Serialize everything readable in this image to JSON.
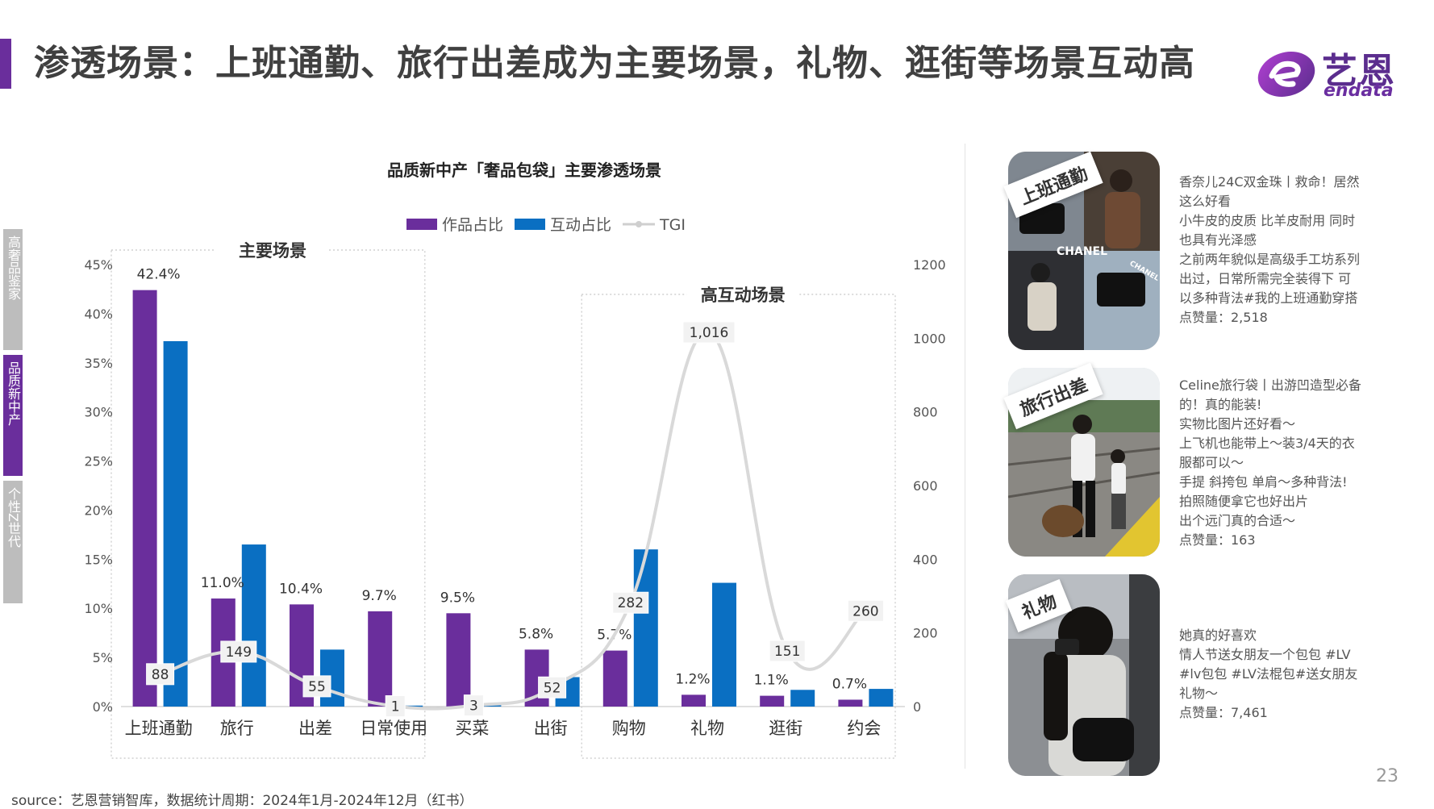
{
  "page": {
    "title": "渗透场景：上班通勤、旅行出差成为主要场景，礼物、逛街等场景互动高",
    "logo_zh": "艺恩",
    "logo_en": "endata",
    "source": "source：艺恩营销智库，数据统计周期：2024年1月-2024年12月（红书）",
    "page_number": "23"
  },
  "side_tabs": [
    {
      "label": "高奢品鉴家",
      "active": false
    },
    {
      "label": "品质新中产",
      "active": true
    },
    {
      "label": "个性Z世代",
      "active": false
    }
  ],
  "colors": {
    "purple": "#6a2e9c",
    "blue": "#0a6fc2",
    "tgi": "#d9d9d9",
    "tab_gray": "#bdbdbd"
  },
  "chart_data": {
    "type": "bar",
    "title": "品质新中产「奢品包袋」主要渗透场景",
    "categories": [
      "上班通勤",
      "旅行",
      "出差",
      "日常使用",
      "买菜",
      "出街",
      "购物",
      "礼物",
      "逛街",
      "约会"
    ],
    "series": [
      {
        "name": "作品占比",
        "color": "#6a2e9c",
        "axis": "left",
        "values": [
          42.4,
          11.0,
          10.4,
          9.7,
          9.5,
          5.8,
          5.7,
          1.2,
          1.1,
          0.7
        ],
        "labels": [
          "42.4%",
          "11.0%",
          "10.4%",
          "9.7%",
          "9.5%",
          "5.8%",
          "5.7%",
          "1.2%",
          "1.1%",
          "0.7%"
        ]
      },
      {
        "name": "互动占比",
        "color": "#0a6fc2",
        "axis": "left",
        "values": [
          37.2,
          16.5,
          5.8,
          0.1,
          0.2,
          3.0,
          16.0,
          12.6,
          1.7,
          1.8
        ]
      },
      {
        "name": "TGI",
        "type": "line",
        "color": "#d9d9d9",
        "axis": "right",
        "values": [
          88,
          149,
          55,
          1,
          3,
          52,
          282,
          1016,
          151,
          260
        ],
        "labels": [
          "88",
          "149",
          "55",
          "1",
          "3",
          "52",
          "282",
          "1,016",
          "151",
          "260"
        ]
      }
    ],
    "y_left": {
      "min": 0,
      "max": 45,
      "ticks": [
        "0%",
        "5%",
        "10%",
        "15%",
        "20%",
        "25%",
        "30%",
        "35%",
        "40%",
        "45%"
      ]
    },
    "y_right": {
      "min": 0,
      "max": 1200,
      "ticks": [
        "0",
        "200",
        "400",
        "600",
        "800",
        "1000",
        "1200"
      ]
    },
    "groups": [
      {
        "label": "主要场景",
        "from": 0,
        "to": 3
      },
      {
        "label": "高互动场景",
        "from": 6,
        "to": 9
      }
    ],
    "legend_position": "top"
  },
  "posts": [
    {
      "tag": "上班通勤",
      "lines": [
        "香奈儿24C双金珠丨救命！居然",
        "这么好看",
        "小牛皮的皮质 比羊皮耐用 同时",
        "也具有光泽感",
        "之前两年貌似是高级手工坊系列",
        "出过，日常所需完全装得下 可",
        "以多种背法#我的上班通勤穿搭",
        "点赞量：2,518"
      ],
      "photo_text": [
        "CHANEL",
        "CHANEL"
      ]
    },
    {
      "tag": "旅行出差",
      "lines": [
        "Celine旅行袋丨出游凹造型必备",
        "的！真的能装!",
        "实物比图片还好看～",
        "上飞机也能带上～装3/4天的衣",
        "服都可以～",
        "手提 斜挎包 单肩～多种背法!",
        "拍照随便拿它也好出片",
        "出个远门真的合适～",
        "点赞量：163"
      ]
    },
    {
      "tag": "礼物",
      "lines": [
        "她真的好喜欢",
        "情人节送女朋友一个包包 #LV",
        "#lv包包 #LV法棍包#送女朋友",
        "礼物～",
        "点赞量：7,461"
      ]
    }
  ]
}
